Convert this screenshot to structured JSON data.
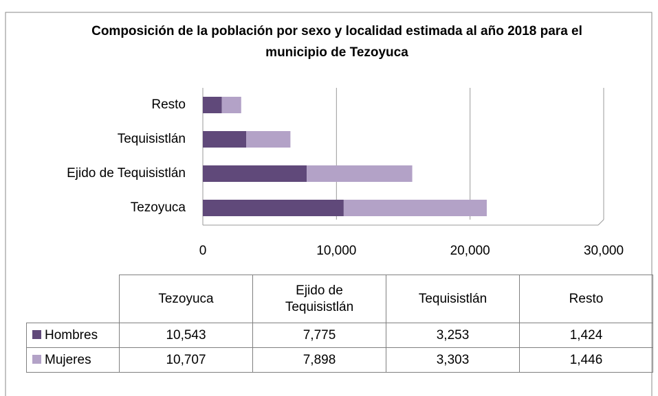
{
  "chart_data": {
    "type": "stacked_bar_horizontal",
    "title": "Composición de la población por sexo y localidad estimada al año 2018 para el municipio de Tezoyuca",
    "categories": [
      "Tezoyuca",
      "Ejido de Tequisistlán",
      "Tequisistlán",
      "Resto"
    ],
    "series": [
      {
        "name": "Hombres",
        "color": "#60497a",
        "values": [
          10543,
          7775,
          3253,
          1424
        ],
        "value_labels": [
          "10,543",
          "7,775",
          "3,253",
          "1,424"
        ]
      },
      {
        "name": "Mujeres",
        "color": "#b3a2c7",
        "values": [
          10707,
          7898,
          3303,
          1446
        ],
        "value_labels": [
          "10,707",
          "7,898",
          "3,303",
          "1,446"
        ]
      }
    ],
    "xlim": [
      0,
      30000
    ],
    "xticks": [
      0,
      {
        "value": 10000,
        "label": "10,000"
      },
      {
        "value": 20000,
        "label": "20,000"
      },
      {
        "value": 30000,
        "label": "30,000"
      }
    ],
    "grid": true
  }
}
